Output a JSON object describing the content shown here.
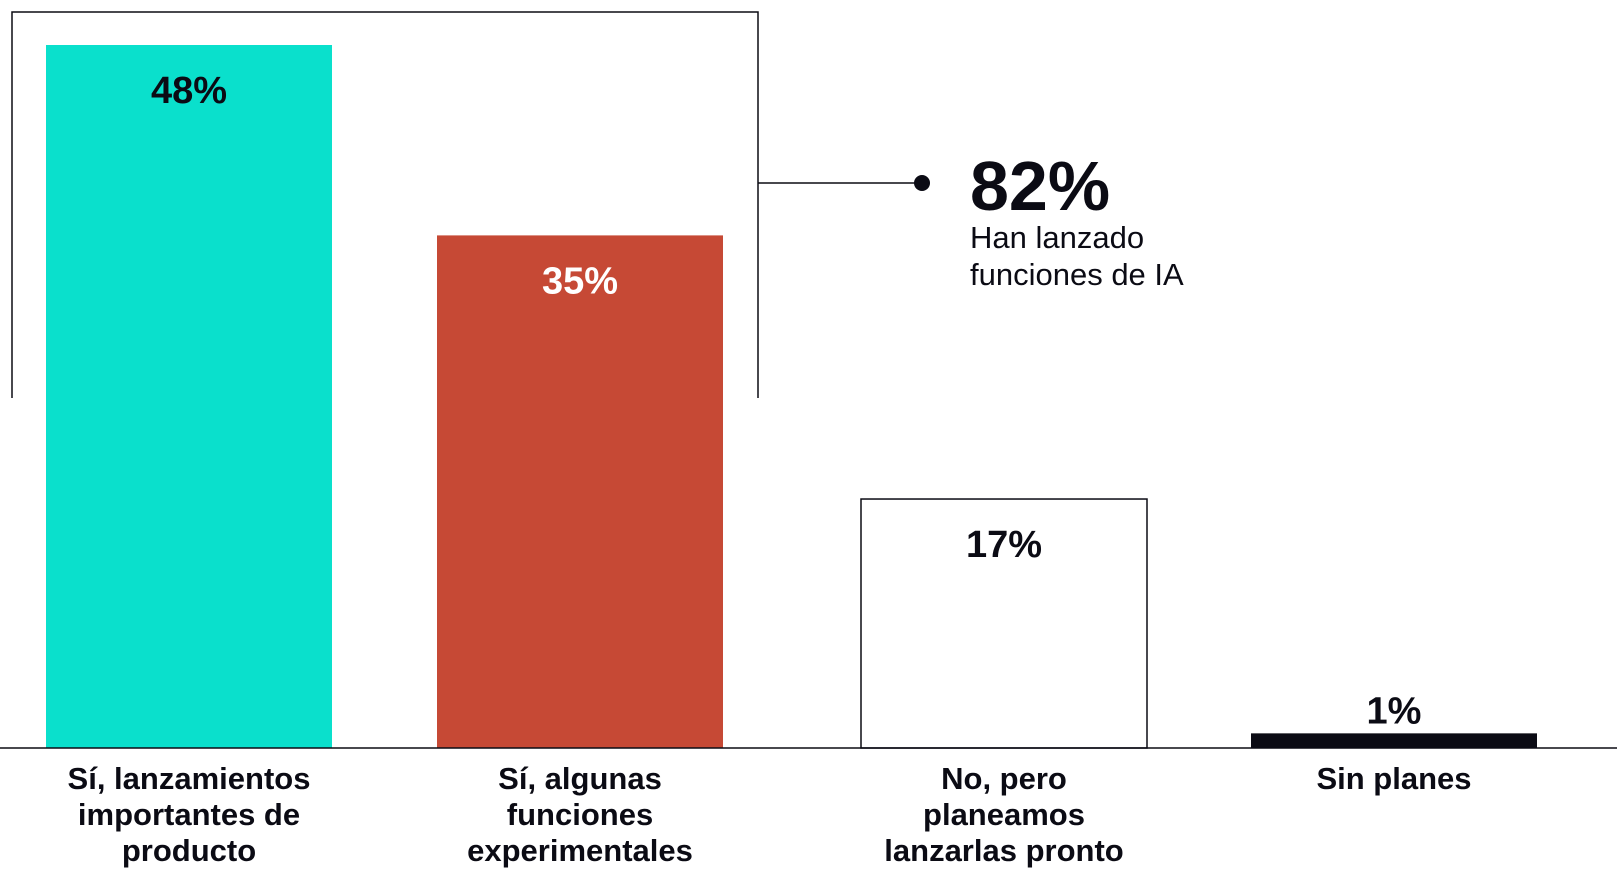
{
  "chart_data": {
    "type": "bar",
    "title": "",
    "xlabel": "",
    "ylabel": "",
    "ylim": [
      0,
      50
    ],
    "grid": false,
    "categories": [
      [
        "Sí, lanzamientos",
        "importantes de",
        "producto"
      ],
      [
        "Sí, algunas",
        "funciones",
        "experimentales"
      ],
      [
        "No, pero",
        "planeamos",
        "lanzarlas pronto"
      ],
      [
        "Sin planes"
      ]
    ],
    "values": [
      48,
      35,
      17,
      1
    ],
    "value_labels": [
      "48%",
      "35%",
      "17%",
      "1%"
    ],
    "colors": {
      "bar_fills": [
        "#0ae0cc",
        "#c64935",
        "#ffffff",
        "#0b0b14"
      ],
      "value_label_colors": [
        "#0b0b14",
        "#ffffff",
        "#0b0b14",
        "#0b0b14"
      ],
      "ink": "#0b0b14"
    },
    "annotation": {
      "value": "82%",
      "label_lines": [
        "Han lanzado",
        "funciones de IA"
      ],
      "spans_categories": [
        0,
        1
      ]
    }
  }
}
